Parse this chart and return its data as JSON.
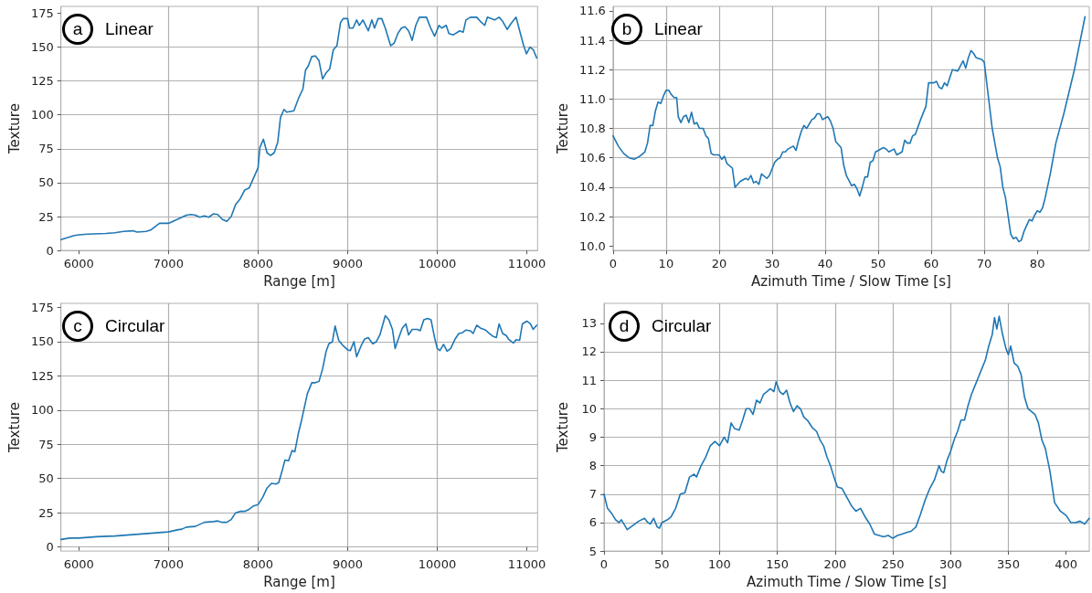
{
  "chart_data": [
    {
      "type": "line",
      "xlabel": "Range [m]",
      "ylabel": "Texture",
      "annotations": [
        "a",
        "Linear"
      ],
      "grid": true,
      "xlim": [
        5800,
        11120
      ],
      "ylim": [
        0,
        180
      ],
      "xticks": [
        6000,
        7000,
        8000,
        9000,
        10000,
        11000
      ],
      "yticks": [
        0,
        25,
        50,
        75,
        100,
        125,
        150,
        175
      ],
      "x": [
        5800,
        5900,
        5950,
        6000,
        6100,
        6300,
        6400,
        6500,
        6600,
        6650,
        6750,
        6800,
        6900,
        6950,
        7000,
        7100,
        7200,
        7250,
        7300,
        7350,
        7400,
        7450,
        7500,
        7550,
        7600,
        7650,
        7700,
        7750,
        7800,
        7850,
        7900,
        8000,
        8020,
        8060,
        8100,
        8140,
        8180,
        8220,
        8250,
        8290,
        8320,
        8400,
        8450,
        8500,
        8530,
        8560,
        8600,
        8640,
        8680,
        8720,
        8760,
        8800,
        8840,
        8880,
        8920,
        8950,
        9000,
        9020,
        9060,
        9100,
        9130,
        9170,
        9230,
        9270,
        9300,
        9340,
        9380,
        9420,
        9480,
        9520,
        9560,
        9600,
        9640,
        9680,
        9720,
        9760,
        9800,
        9880,
        9920,
        9970,
        10020,
        10050,
        10100,
        10130,
        10180,
        10250,
        10290,
        10320,
        10370,
        10440,
        10480,
        10530,
        10560,
        10640,
        10690,
        10730,
        10780,
        10820,
        10880,
        10920,
        10960,
        10996,
        11034,
        11072,
        11110
      ],
      "series": [
        {
          "color": "#1f77b4",
          "values": [
            8,
            10,
            11,
            11.5,
            12,
            12.5,
            13,
            14,
            14.5,
            13.5,
            14,
            15,
            20,
            20,
            20,
            23,
            26,
            26.5,
            26,
            24.5,
            25.5,
            24.5,
            27,
            26.5,
            23,
            21.5,
            25,
            34,
            38,
            44.5,
            46,
            61,
            76,
            82,
            72,
            70,
            72,
            80,
            98,
            104,
            102,
            103,
            112,
            119,
            133,
            136,
            143,
            143.5,
            140,
            126.5,
            131,
            134,
            148,
            151,
            168,
            171,
            171,
            164,
            164,
            170,
            166,
            170,
            162,
            170,
            164,
            171,
            171,
            164,
            151,
            153,
            160,
            164,
            165,
            162,
            155,
            166,
            172,
            172,
            165,
            158,
            166,
            164,
            166,
            160,
            159,
            162,
            161,
            170,
            172,
            172,
            169,
            166,
            172,
            170,
            172,
            169,
            163,
            167,
            172,
            162,
            152,
            145,
            150,
            148,
            142
          ]
        }
      ]
    },
    {
      "type": "line",
      "xlabel": "Azimuth Time / Slow Time [s]",
      "ylabel": "Texture",
      "annotations": [
        "b",
        "Linear"
      ],
      "grid": true,
      "xlim": [
        0,
        89.8
      ],
      "ylim": [
        9.97,
        11.63
      ],
      "xticks": [
        0,
        10,
        20,
        30,
        40,
        50,
        60,
        70,
        80
      ],
      "yticks": [
        {
          "value": 10,
          "label": "10.0"
        },
        10.2,
        10.4,
        10.6,
        10.8,
        {
          "value": 11,
          "label": "11.0"
        },
        11.2,
        11.4,
        11.6
      ],
      "x": [
        0,
        1,
        2,
        3,
        4,
        5,
        6,
        6.5,
        7,
        7.5,
        8,
        8.5,
        9,
        9.5,
        10,
        10.5,
        11,
        11.5,
        12,
        12.3,
        12.8,
        13.3,
        13.8,
        14.3,
        14.8,
        15.3,
        15.8,
        16.3,
        17,
        17.5,
        18,
        18.5,
        19,
        20,
        20.5,
        21,
        21.5,
        22.5,
        23,
        24,
        25,
        25.5,
        26,
        26.5,
        27,
        27.5,
        28,
        29,
        29.5,
        30.5,
        31,
        31.5,
        32,
        32.5,
        33,
        34,
        34.5,
        35,
        35.5,
        36,
        36.5,
        37,
        37.5,
        38,
        38.5,
        39,
        39.5,
        40,
        40.5,
        41,
        41.5,
        42,
        42.5,
        43,
        43.5,
        44,
        45,
        45.5,
        46,
        46.5,
        47,
        47.5,
        48,
        48.5,
        49,
        49.5,
        50,
        51,
        51.5,
        52,
        53,
        53.5,
        54.5,
        55,
        55.5,
        56,
        56.5,
        57,
        58,
        59,
        59.5,
        60.5,
        61,
        61.5,
        62,
        62.5,
        63,
        64,
        65,
        66,
        66.5,
        67,
        67.5,
        68,
        68.5,
        69.5,
        70,
        70.5,
        71.5,
        72.5,
        73,
        73.5,
        74,
        75,
        75.5,
        76,
        76.5,
        77,
        77.5,
        78.5,
        79,
        79.5,
        80,
        80.5,
        81,
        81.5,
        82.5,
        83.5,
        85,
        87,
        89
      ],
      "series": [
        {
          "color": "#1f77b4",
          "values": [
            10.75,
            10.68,
            10.63,
            10.6,
            10.59,
            10.61,
            10.64,
            10.7,
            10.82,
            10.82,
            10.92,
            10.98,
            10.97,
            11.02,
            11.06,
            11.06,
            11.03,
            11.01,
            11.01,
            10.88,
            10.84,
            10.88,
            10.89,
            10.84,
            10.91,
            10.83,
            10.84,
            10.8,
            10.8,
            10.75,
            10.73,
            10.63,
            10.62,
            10.62,
            10.59,
            10.61,
            10.56,
            10.53,
            10.4,
            10.44,
            10.46,
            10.45,
            10.48,
            10.43,
            10.44,
            10.42,
            10.49,
            10.46,
            10.48,
            10.57,
            10.59,
            10.6,
            10.64,
            10.64,
            10.66,
            10.68,
            10.65,
            10.72,
            10.78,
            10.82,
            10.8,
            10.83,
            10.86,
            10.87,
            10.9,
            10.9,
            10.86,
            10.87,
            10.88,
            10.85,
            10.8,
            10.71,
            10.69,
            10.67,
            10.55,
            10.48,
            10.41,
            10.42,
            10.39,
            10.34,
            10.4,
            10.47,
            10.47,
            10.57,
            10.58,
            10.64,
            10.65,
            10.67,
            10.66,
            10.64,
            10.66,
            10.62,
            10.64,
            10.72,
            10.7,
            10.7,
            10.75,
            10.76,
            10.86,
            10.95,
            11.11,
            11.11,
            11.12,
            11.08,
            11.07,
            11.11,
            11.09,
            11.2,
            11.19,
            11.26,
            11.21,
            11.28,
            11.33,
            11.31,
            11.28,
            11.27,
            11.25,
            11.1,
            10.8,
            10.6,
            10.54,
            10.4,
            10.33,
            10.08,
            10.05,
            10.06,
            10.03,
            10.04,
            10.1,
            10.18,
            10.17,
            10.21,
            10.24,
            10.23,
            10.26,
            10.33,
            10.5,
            10.7,
            10.9,
            11.2,
            11.56
          ]
        }
      ]
    },
    {
      "type": "line",
      "xlabel": "Range [m]",
      "ylabel": "Texture",
      "annotations": [
        "c",
        "Circular"
      ],
      "grid": true,
      "xlim": [
        5800,
        11120
      ],
      "ylim": [
        -3,
        178
      ],
      "xticks": [
        6000,
        7000,
        8000,
        9000,
        10000,
        11000
      ],
      "yticks": [
        0,
        25,
        50,
        75,
        100,
        125,
        150,
        175
      ],
      "x": [
        5800,
        5900,
        6000,
        6200,
        6400,
        6600,
        6800,
        7000,
        7100,
        7150,
        7200,
        7300,
        7400,
        7500,
        7550,
        7600,
        7650,
        7700,
        7750,
        7800,
        7850,
        7900,
        7950,
        8000,
        8050,
        8100,
        8150,
        8200,
        8230,
        8270,
        8300,
        8340,
        8380,
        8410,
        8450,
        8480,
        8520,
        8550,
        8600,
        8640,
        8680,
        8720,
        8760,
        8790,
        8830,
        8860,
        8900,
        8950,
        9000,
        9030,
        9070,
        9100,
        9150,
        9190,
        9230,
        9280,
        9320,
        9360,
        9420,
        9460,
        9500,
        9530,
        9560,
        9610,
        9650,
        9680,
        9720,
        9780,
        9810,
        9850,
        9890,
        9930,
        9970,
        10000,
        10030,
        10070,
        10110,
        10150,
        10200,
        10240,
        10280,
        10320,
        10370,
        10400,
        10440,
        10480,
        10540,
        10580,
        10620,
        10660,
        10690,
        10730,
        10770,
        10800,
        10850,
        10880,
        10920,
        10950,
        11000,
        11040,
        11070,
        11110
      ],
      "series": [
        {
          "color": "#1f77b4",
          "values": [
            5.5,
            6.5,
            6.5,
            7.5,
            8,
            9,
            10,
            11,
            12.5,
            13,
            14.5,
            15,
            18,
            18.5,
            19,
            18,
            18,
            20,
            25,
            26,
            26,
            27.5,
            30,
            31,
            36,
            43,
            46.5,
            46,
            47,
            56,
            63.5,
            63,
            70.5,
            69.5,
            83,
            91,
            103,
            112,
            120,
            120,
            121,
            130,
            143,
            148.5,
            150,
            161.5,
            151,
            147,
            144,
            143.5,
            150,
            139,
            147,
            152,
            153,
            148.5,
            150,
            155,
            169,
            166,
            159,
            145,
            151,
            160,
            163,
            155,
            159,
            159,
            158,
            166,
            167,
            166,
            153,
            145,
            143.5,
            148,
            143,
            145,
            152,
            156,
            156.5,
            158.5,
            158,
            156,
            162,
            160,
            158.5,
            156,
            154,
            153,
            163,
            156,
            154.5,
            151.5,
            149,
            151.5,
            151,
            163,
            165,
            163,
            159,
            162
          ]
        }
      ]
    },
    {
      "type": "line",
      "xlabel": "Azimuth Time / Slow Time [s]",
      "ylabel": "Texture",
      "annotations": [
        "d",
        "Circular"
      ],
      "grid": true,
      "xlim": [
        0,
        420
      ],
      "ylim": [
        5,
        13.7
      ],
      "xticks": [
        0,
        50,
        100,
        150,
        200,
        250,
        300,
        350,
        400
      ],
      "yticks": [
        5,
        6,
        7,
        8,
        9,
        10,
        11,
        12,
        13
      ],
      "x": [
        0,
        3,
        7,
        10,
        13,
        15,
        18,
        20,
        25,
        30,
        35,
        38,
        40,
        43,
        46,
        48,
        50,
        55,
        58,
        62,
        66,
        70,
        74,
        78,
        80,
        84,
        88,
        92,
        96,
        100,
        104,
        107,
        110,
        113,
        117,
        120,
        123,
        126,
        129,
        132,
        135,
        138,
        141,
        144,
        147,
        149,
        152,
        155,
        158,
        161,
        164,
        167,
        170,
        173,
        176,
        180,
        184,
        187,
        190,
        193,
        196,
        199,
        202,
        206,
        210,
        214,
        218,
        222,
        226,
        230,
        234,
        238,
        242,
        246,
        250,
        254,
        258,
        262,
        266,
        270,
        274,
        278,
        282,
        286,
        290,
        292,
        294,
        297,
        300,
        303,
        306,
        309,
        312,
        315,
        318,
        321,
        324,
        327,
        330,
        333,
        336,
        338,
        340,
        342,
        345,
        348,
        350,
        352,
        355,
        358,
        361,
        364,
        367,
        370,
        373,
        376,
        379,
        382,
        386,
        390,
        395,
        400,
        404,
        408,
        412,
        416,
        420
      ],
      "series": [
        {
          "color": "#1f77b4",
          "values": [
            7.0,
            6.5,
            6.3,
            6.1,
            6.0,
            6.1,
            5.9,
            5.75,
            5.9,
            6.05,
            6.15,
            6.0,
            5.95,
            6.15,
            5.85,
            5.8,
            6.0,
            6.1,
            6.2,
            6.5,
            7.0,
            7.05,
            7.6,
            7.7,
            7.6,
            8.0,
            8.3,
            8.7,
            8.85,
            8.7,
            9.0,
            8.8,
            9.5,
            9.3,
            9.25,
            9.6,
            10.0,
            10.0,
            9.8,
            10.3,
            10.2,
            10.5,
            10.6,
            10.7,
            10.6,
            10.95,
            10.6,
            10.5,
            10.65,
            10.2,
            9.9,
            10.1,
            10.0,
            9.7,
            9.6,
            9.35,
            9.2,
            8.9,
            8.7,
            8.3,
            8.0,
            7.6,
            7.25,
            7.2,
            6.9,
            6.6,
            6.4,
            6.5,
            6.2,
            5.95,
            5.6,
            5.55,
            5.5,
            5.55,
            5.45,
            5.55,
            5.6,
            5.65,
            5.7,
            5.85,
            6.3,
            6.8,
            7.2,
            7.5,
            8.0,
            7.8,
            7.75,
            8.2,
            8.5,
            8.9,
            9.2,
            9.6,
            9.6,
            10.1,
            10.5,
            10.8,
            11.1,
            11.4,
            11.7,
            12.2,
            12.6,
            13.2,
            12.8,
            13.25,
            12.6,
            12.1,
            11.9,
            12.2,
            11.6,
            11.5,
            11.2,
            10.4,
            10.0,
            9.9,
            9.8,
            9.5,
            8.9,
            8.6,
            7.8,
            6.7,
            6.4,
            6.25,
            6.0,
            6.0,
            6.05,
            5.95,
            6.15
          ]
        }
      ]
    }
  ]
}
